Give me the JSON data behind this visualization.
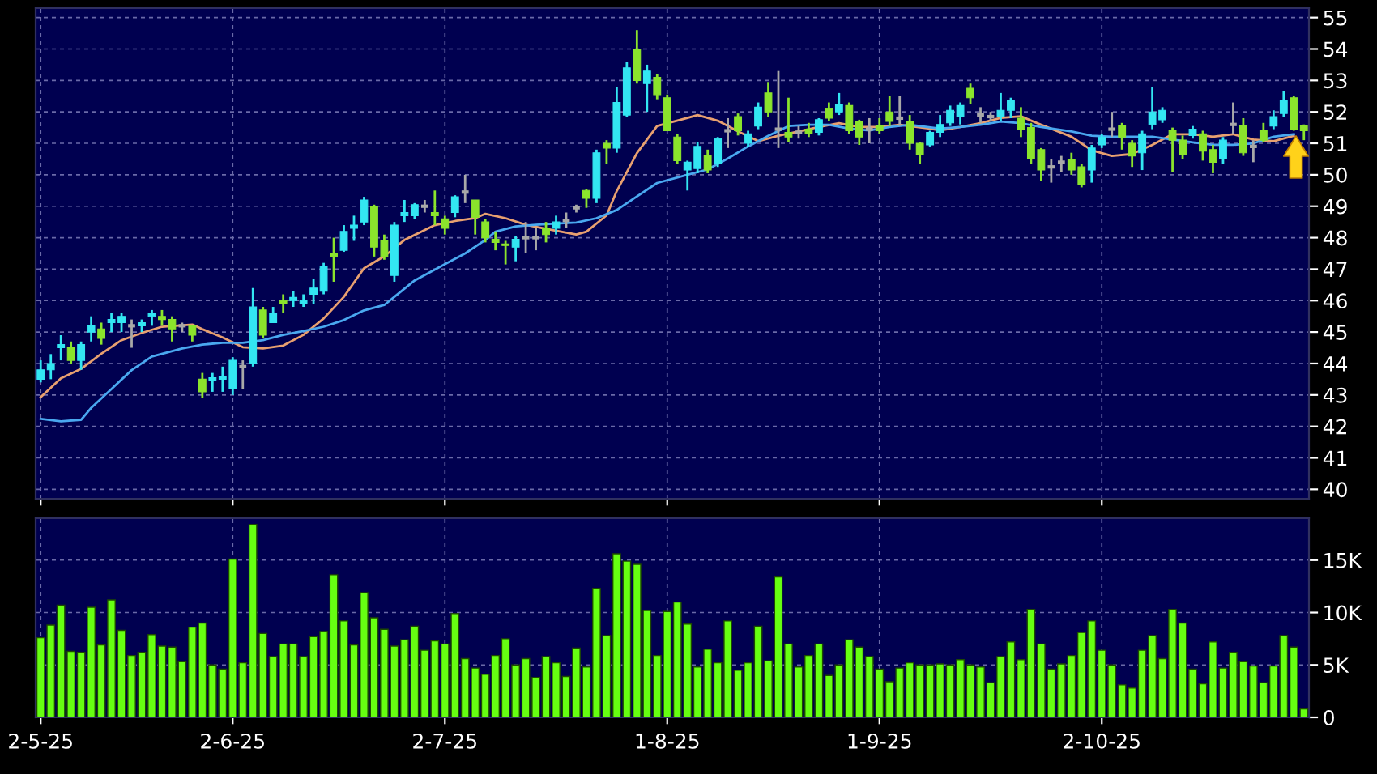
{
  "chart_data": [
    {
      "type": "candlestick",
      "categories": [
        null,
        null,
        null,
        null,
        null,
        null,
        null,
        null,
        null,
        null,
        null,
        null,
        null,
        null,
        null,
        null,
        null,
        null,
        null,
        null,
        null,
        null,
        null,
        null,
        null,
        null,
        null,
        null,
        null,
        null,
        null,
        null,
        null,
        null,
        null,
        null,
        null,
        null,
        null,
        null,
        null,
        null,
        null,
        null,
        null,
        null,
        null,
        null,
        null,
        null,
        null,
        null,
        null,
        null,
        null,
        null,
        null,
        null,
        null,
        null,
        null,
        null,
        null,
        null,
        null,
        null,
        null,
        null,
        null,
        null,
        null,
        null,
        null,
        null,
        null,
        null,
        null,
        null,
        null,
        null,
        null,
        null,
        null,
        null,
        null,
        null,
        null,
        null,
        null,
        null,
        null,
        null,
        null,
        null,
        null,
        null,
        null,
        null,
        null,
        null,
        null,
        null,
        null,
        null,
        null,
        null,
        null,
        null,
        null,
        null,
        null,
        null,
        null,
        null,
        null,
        null,
        null,
        null,
        null,
        null,
        null,
        null,
        null,
        null,
        null,
        null
      ],
      "ohlc": [
        [
          43.5,
          44.1,
          43.4,
          43.8
        ],
        [
          43.8,
          44.3,
          43.5,
          44.0
        ],
        [
          44.5,
          44.9,
          44.1,
          44.6
        ],
        [
          44.5,
          44.7,
          44.0,
          44.1
        ],
        [
          44.1,
          44.7,
          43.8,
          44.6
        ],
        [
          45.0,
          45.5,
          44.7,
          45.2
        ],
        [
          45.1,
          45.3,
          44.6,
          44.8
        ],
        [
          45.3,
          45.6,
          45.0,
          45.4
        ],
        [
          45.3,
          45.6,
          45.0,
          45.5
        ],
        [
          45.2,
          45.4,
          44.5,
          45.2
        ],
        [
          45.2,
          45.4,
          45.0,
          45.3
        ],
        [
          45.5,
          45.7,
          45.2,
          45.6
        ],
        [
          45.5,
          45.7,
          45.2,
          45.4
        ],
        [
          45.4,
          45.5,
          44.7,
          45.1
        ],
        [
          45.2,
          45.3,
          45.0,
          45.2
        ],
        [
          45.2,
          45.2,
          44.7,
          44.9
        ],
        [
          43.5,
          43.7,
          42.9,
          43.1
        ],
        [
          43.45,
          43.7,
          43.1,
          43.55
        ],
        [
          43.5,
          43.9,
          43.1,
          43.6
        ],
        [
          43.2,
          44.2,
          43.0,
          44.1
        ],
        [
          43.9,
          44.1,
          43.2,
          43.9
        ],
        [
          44.0,
          46.4,
          43.9,
          45.8
        ],
        [
          45.7,
          45.8,
          44.8,
          44.9
        ],
        [
          45.3,
          45.8,
          45.3,
          45.6
        ],
        [
          46.0,
          46.2,
          45.6,
          45.9
        ],
        [
          46.0,
          46.3,
          45.8,
          46.1
        ],
        [
          45.9,
          46.2,
          45.8,
          46.0
        ],
        [
          46.2,
          46.7,
          45.9,
          46.4
        ],
        [
          46.3,
          47.2,
          46.2,
          47.1
        ],
        [
          47.5,
          48.0,
          46.6,
          47.4
        ],
        [
          47.6,
          48.4,
          47.55,
          48.2
        ],
        [
          48.3,
          48.7,
          47.9,
          48.4
        ],
        [
          48.5,
          49.3,
          48.4,
          49.2
        ],
        [
          49.0,
          49.05,
          47.4,
          47.7
        ],
        [
          47.9,
          48.1,
          47.3,
          47.4
        ],
        [
          46.8,
          48.5,
          46.6,
          48.4
        ],
        [
          48.7,
          49.2,
          48.5,
          48.8
        ],
        [
          48.7,
          49.1,
          48.6,
          49.05
        ],
        [
          49.0,
          49.2,
          48.8,
          49.0
        ],
        [
          48.8,
          49.5,
          48.4,
          48.7
        ],
        [
          48.6,
          48.7,
          48.1,
          48.3
        ],
        [
          48.8,
          49.35,
          48.65,
          49.3
        ],
        [
          49.45,
          50.0,
          49.1,
          49.45
        ],
        [
          49.2,
          49.2,
          48.1,
          48.65
        ],
        [
          48.5,
          48.6,
          47.85,
          48.0
        ],
        [
          47.95,
          48.2,
          47.6,
          47.85
        ],
        [
          47.8,
          47.9,
          47.15,
          47.75
        ],
        [
          47.7,
          48.05,
          47.25,
          47.95
        ],
        [
          48.0,
          48.5,
          47.5,
          48.0
        ],
        [
          48.0,
          48.3,
          47.6,
          48.0
        ],
        [
          48.3,
          48.5,
          47.85,
          48.1
        ],
        [
          48.3,
          48.7,
          48.1,
          48.5
        ],
        [
          48.55,
          48.8,
          48.3,
          48.55
        ],
        [
          48.95,
          49.05,
          48.8,
          48.95
        ],
        [
          49.5,
          49.55,
          48.95,
          49.25
        ],
        [
          49.25,
          50.8,
          49.1,
          50.7
        ],
        [
          51.0,
          51.1,
          50.35,
          50.85
        ],
        [
          50.85,
          52.8,
          50.7,
          52.3
        ],
        [
          51.9,
          53.6,
          51.85,
          53.4
        ],
        [
          54.0,
          54.6,
          52.9,
          53.0
        ],
        [
          52.9,
          53.5,
          52.0,
          53.3
        ],
        [
          53.1,
          53.2,
          52.4,
          52.55
        ],
        [
          52.45,
          52.55,
          51.4,
          51.4
        ],
        [
          51.2,
          51.3,
          50.35,
          50.45
        ],
        [
          50.15,
          50.45,
          49.5,
          50.4
        ],
        [
          50.2,
          51.05,
          50.05,
          50.9
        ],
        [
          50.6,
          50.8,
          50.05,
          50.15
        ],
        [
          50.35,
          51.2,
          50.25,
          51.15
        ],
        [
          51.4,
          51.8,
          50.85,
          51.4
        ],
        [
          51.85,
          51.95,
          51.25,
          51.4
        ],
        [
          51.0,
          51.4,
          50.9,
          51.3
        ],
        [
          51.55,
          52.3,
          51.45,
          52.15
        ],
        [
          52.6,
          52.95,
          51.85,
          52.0
        ],
        [
          51.45,
          53.3,
          50.85,
          51.45
        ],
        [
          51.35,
          52.45,
          51.05,
          51.2
        ],
        [
          51.35,
          51.55,
          51.15,
          51.35
        ],
        [
          51.45,
          51.65,
          51.2,
          51.3
        ],
        [
          51.35,
          51.8,
          51.25,
          51.75
        ],
        [
          52.1,
          52.3,
          51.7,
          51.8
        ],
        [
          52.0,
          52.6,
          51.9,
          52.25
        ],
        [
          52.2,
          52.3,
          51.3,
          51.4
        ],
        [
          51.7,
          51.75,
          50.95,
          51.2
        ],
        [
          51.45,
          51.8,
          51.0,
          51.45
        ],
        [
          51.55,
          51.8,
          51.3,
          51.4
        ],
        [
          52.0,
          52.5,
          51.55,
          51.7
        ],
        [
          51.8,
          52.5,
          51.55,
          51.8
        ],
        [
          51.7,
          51.9,
          50.8,
          51.0
        ],
        [
          51.0,
          51.05,
          50.35,
          50.65
        ],
        [
          50.95,
          51.4,
          50.9,
          51.35
        ],
        [
          51.35,
          51.9,
          51.2,
          51.6
        ],
        [
          51.65,
          52.2,
          51.55,
          52.05
        ],
        [
          51.85,
          52.3,
          51.6,
          52.2
        ],
        [
          52.75,
          52.9,
          52.25,
          52.45
        ],
        [
          51.9,
          52.15,
          51.65,
          51.9
        ],
        [
          51.85,
          52.0,
          51.7,
          51.85
        ],
        [
          51.85,
          52.6,
          51.7,
          52.05
        ],
        [
          52.05,
          52.45,
          51.8,
          52.35
        ],
        [
          51.8,
          52.15,
          51.2,
          51.45
        ],
        [
          51.5,
          51.65,
          50.35,
          50.5
        ],
        [
          50.8,
          50.85,
          49.8,
          50.15
        ],
        [
          50.25,
          50.5,
          49.75,
          50.25
        ],
        [
          50.4,
          50.6,
          50.1,
          50.4
        ],
        [
          50.5,
          50.7,
          50.0,
          50.15
        ],
        [
          50.25,
          50.35,
          49.6,
          49.7
        ],
        [
          50.15,
          50.95,
          49.75,
          50.85
        ],
        [
          50.95,
          51.3,
          50.85,
          51.2
        ],
        [
          51.45,
          52.0,
          51.2,
          51.45
        ],
        [
          51.55,
          51.65,
          50.8,
          51.2
        ],
        [
          51.0,
          51.1,
          50.25,
          50.6
        ],
        [
          50.7,
          51.4,
          50.15,
          51.3
        ],
        [
          51.6,
          52.8,
          51.45,
          52.0
        ],
        [
          51.75,
          52.15,
          51.65,
          52.05
        ],
        [
          51.4,
          51.5,
          50.1,
          51.1
        ],
        [
          51.1,
          51.25,
          50.5,
          50.65
        ],
        [
          51.25,
          51.55,
          51.15,
          51.45
        ],
        [
          51.3,
          51.4,
          50.45,
          50.75
        ],
        [
          50.8,
          50.95,
          50.05,
          50.4
        ],
        [
          50.5,
          51.2,
          50.35,
          51.1
        ],
        [
          51.6,
          52.3,
          51.3,
          51.6
        ],
        [
          51.55,
          51.8,
          50.6,
          50.7
        ],
        [
          50.9,
          51.1,
          50.4,
          50.9
        ],
        [
          51.4,
          51.65,
          51.05,
          51.1
        ],
        [
          51.55,
          52.05,
          51.45,
          51.85
        ],
        [
          51.95,
          52.65,
          51.85,
          52.35
        ],
        [
          52.45,
          52.5,
          51.4,
          51.45
        ],
        [
          51.55,
          51.6,
          51.1,
          51.4
        ]
      ],
      "colors": [
        "#33e6f2",
        "#33e6f2",
        "#33e6f2",
        "#8be42c",
        "#33e6f2",
        "#33e6f2",
        "#8be42c",
        "#33e6f2",
        "#33e6f2",
        "#a8a8a8",
        "#33e6f2",
        "#33e6f2",
        "#8be42c",
        "#8be42c",
        "#a8a8a8",
        "#8be42c",
        "#8be42c",
        "#33e6f2",
        "#33e6f2",
        "#33e6f2",
        "#a8a8a8",
        "#33e6f2",
        "#8be42c",
        "#33e6f2",
        "#8be42c",
        "#33e6f2",
        "#33e6f2",
        "#33e6f2",
        "#33e6f2",
        "#8be42c",
        "#33e6f2",
        "#33e6f2",
        "#33e6f2",
        "#8be42c",
        "#8be42c",
        "#33e6f2",
        "#33e6f2",
        "#33e6f2",
        "#a8a8a8",
        "#8be42c",
        "#8be42c",
        "#33e6f2",
        "#a8a8a8",
        "#8be42c",
        "#8be42c",
        "#8be42c",
        "#8be42c",
        "#33e6f2",
        "#a8a8a8",
        "#a8a8a8",
        "#8be42c",
        "#33e6f2",
        "#a8a8a8",
        "#a8a8a8",
        "#8be42c",
        "#33e6f2",
        "#8be42c",
        "#33e6f2",
        "#33e6f2",
        "#8be42c",
        "#33e6f2",
        "#8be42c",
        "#8be42c",
        "#8be42c",
        "#33e6f2",
        "#33e6f2",
        "#8be42c",
        "#33e6f2",
        "#a8a8a8",
        "#8be42c",
        "#33e6f2",
        "#33e6f2",
        "#8be42c",
        "#a8a8a8",
        "#8be42c",
        "#a8a8a8",
        "#8be42c",
        "#33e6f2",
        "#8be42c",
        "#33e6f2",
        "#8be42c",
        "#8be42c",
        "#a8a8a8",
        "#8be42c",
        "#8be42c",
        "#a8a8a8",
        "#8be42c",
        "#8be42c",
        "#33e6f2",
        "#33e6f2",
        "#33e6f2",
        "#33e6f2",
        "#8be42c",
        "#a8a8a8",
        "#a8a8a8",
        "#33e6f2",
        "#33e6f2",
        "#8be42c",
        "#8be42c",
        "#8be42c",
        "#a8a8a8",
        "#a8a8a8",
        "#8be42c",
        "#8be42c",
        "#33e6f2",
        "#33e6f2",
        "#a8a8a8",
        "#8be42c",
        "#8be42c",
        "#33e6f2",
        "#33e6f2",
        "#33e6f2",
        "#8be42c",
        "#8be42c",
        "#33e6f2",
        "#8be42c",
        "#8be42c",
        "#33e6f2",
        "#a8a8a8",
        "#8be42c",
        "#a8a8a8",
        "#8be42c",
        "#33e6f2",
        "#33e6f2",
        "#8be42c",
        "#8be42c"
      ],
      "series": [
        {
          "type": "line",
          "color": "#e8a070",
          "values": [
            42.93,
            null,
            43.53,
            null,
            43.83,
            null,
            44.31,
            null,
            44.74,
            null,
            44.97,
            null,
            45.17,
            null,
            null,
            45.24,
            45.09,
            null,
            44.83,
            null,
            44.52,
            null,
            44.48,
            null,
            44.57,
            null,
            44.91,
            null,
            45.43,
            null,
            46.12,
            null,
            47.03,
            null,
            47.41,
            null,
            47.93,
            null,
            null,
            48.4,
            null,
            48.53,
            null,
            48.62,
            48.76,
            null,
            48.62,
            null,
            48.41,
            null,
            48.28,
            null,
            null,
            48.1,
            48.19,
            null,
            48.71,
            49.48,
            null,
            50.69,
            null,
            51.55,
            null,
            null,
            51.81,
            51.9,
            null,
            51.72,
            null,
            51.38,
            null,
            51.07,
            null,
            51.24,
            null,
            51.38,
            null,
            51.52,
            null,
            51.64,
            null,
            51.52,
            null,
            51.52,
            null,
            51.59,
            null,
            null,
            51.47,
            51.41,
            null,
            51.52,
            null,
            51.64,
            null,
            51.81,
            null,
            51.86,
            null,
            51.59,
            null,
            null,
            51.21,
            null,
            50.78,
            null,
            50.6,
            null,
            50.66,
            null,
            50.95,
            null,
            51.29,
            null,
            51.29,
            null,
            51.21,
            null,
            51.29,
            null,
            51.12,
            null,
            51.07,
            null,
            51.24,
            null
          ]
        },
        {
          "type": "line",
          "color": "#4aa8f0",
          "values": [
            42.24,
            null,
            42.16,
            null,
            42.21,
            42.59,
            null,
            43.19,
            null,
            43.79,
            null,
            44.22,
            null,
            null,
            44.48,
            null,
            44.6,
            null,
            44.66,
            null,
            44.66,
            null,
            44.74,
            null,
            44.91,
            null,
            45.03,
            null,
            45.17,
            null,
            45.38,
            null,
            45.69,
            null,
            45.86,
            46.12,
            null,
            46.64,
            null,
            null,
            47.16,
            null,
            47.5,
            null,
            47.93,
            48.19,
            null,
            48.36,
            null,
            48.41,
            null,
            48.45,
            null,
            48.48,
            null,
            48.62,
            null,
            48.88,
            null,
            49.31,
            null,
            49.74,
            null,
            null,
            50.0,
            null,
            50.17,
            null,
            50.52,
            null,
            50.9,
            null,
            51.24,
            null,
            51.55,
            null,
            51.59,
            null,
            51.59,
            null,
            51.47,
            null,
            51.41,
            null,
            51.52,
            null,
            51.59,
            null,
            null,
            51.47,
            null,
            51.52,
            null,
            51.59,
            null,
            51.69,
            null,
            51.64,
            null,
            51.52,
            null,
            null,
            51.38,
            null,
            51.24,
            null,
            51.21,
            null,
            51.21,
            null,
            51.21,
            null,
            51.12,
            null,
            51.03,
            null,
            50.95,
            null,
            50.95,
            null,
            51.0,
            null,
            51.21,
            null,
            51.29,
            null
          ]
        }
      ],
      "ylim": [
        39.7,
        55.3
      ],
      "yticks": [
        40,
        41,
        42,
        43,
        44,
        45,
        46,
        47,
        48,
        49,
        50,
        51,
        52,
        53,
        54,
        55
      ],
      "grid": true,
      "tick_labels": "y"
    },
    {
      "type": "bar",
      "color": "#66ff11",
      "categories": [
        "2-5-25",
        null,
        null,
        null,
        null,
        null,
        null,
        null,
        null,
        null,
        null,
        null,
        null,
        null,
        null,
        null,
        null,
        null,
        null,
        "2-6-25",
        null,
        null,
        null,
        null,
        null,
        null,
        null,
        null,
        null,
        null,
        null,
        null,
        null,
        null,
        null,
        null,
        null,
        null,
        null,
        null,
        "2-7-25",
        null,
        null,
        null,
        null,
        null,
        null,
        null,
        null,
        null,
        null,
        null,
        null,
        null,
        null,
        null,
        null,
        null,
        null,
        null,
        null,
        null,
        "1-8-25",
        null,
        null,
        null,
        null,
        null,
        null,
        null,
        null,
        null,
        null,
        null,
        null,
        null,
        null,
        null,
        null,
        null,
        null,
        null,
        null,
        "1-9-25",
        null,
        null,
        null,
        null,
        null,
        null,
        null,
        null,
        null,
        null,
        null,
        null,
        null,
        null,
        null,
        null,
        null,
        null,
        null,
        null,
        null,
        "2-10-25",
        null,
        null,
        null,
        null,
        null,
        null,
        null,
        null,
        null,
        null,
        null,
        null,
        null,
        null,
        null,
        null,
        null,
        null,
        null,
        null
      ],
      "values": [
        7600,
        8800,
        10700,
        6300,
        6200,
        10500,
        6900,
        11200,
        8300,
        5900,
        6200,
        7900,
        6800,
        6700,
        5300,
        8600,
        9000,
        5000,
        4600,
        15100,
        5200,
        18400,
        8000,
        5800,
        7000,
        7000,
        5800,
        7700,
        8200,
        13600,
        9200,
        6900,
        11900,
        9500,
        8400,
        6800,
        7400,
        8700,
        6400,
        7300,
        7000,
        9900,
        5600,
        4700,
        4100,
        5900,
        7500,
        5000,
        5600,
        3800,
        5800,
        5200,
        3900,
        6600,
        4800,
        12300,
        7800,
        15600,
        14900,
        14600,
        10200,
        5900,
        10100,
        11000,
        8900,
        4800,
        6500,
        5200,
        9200,
        4500,
        5200,
        8700,
        5400,
        13400,
        7000,
        4800,
        5900,
        7000,
        4000,
        5000,
        7400,
        6700,
        5800,
        4600,
        3400,
        4700,
        5200,
        5000,
        5000,
        5100,
        5000,
        5500,
        5000,
        4800,
        3300,
        5800,
        7200,
        5500,
        10300,
        7000,
        4600,
        5100,
        5900,
        8100,
        9200,
        6400,
        5000,
        3100,
        2800,
        6400,
        7800,
        5600,
        10300,
        9000,
        4600,
        3200,
        7200,
        4700,
        6200,
        5300,
        4900,
        3300,
        4900,
        7800,
        6700,
        800
      ],
      "ylim": [
        0,
        19000
      ],
      "yticks": [
        0,
        {
          "value": 5000,
          "label": "5K"
        },
        {
          "value": 10000,
          "label": "10K"
        },
        {
          "value": 15000,
          "label": "15K"
        }
      ],
      "grid": true
    }
  ]
}
